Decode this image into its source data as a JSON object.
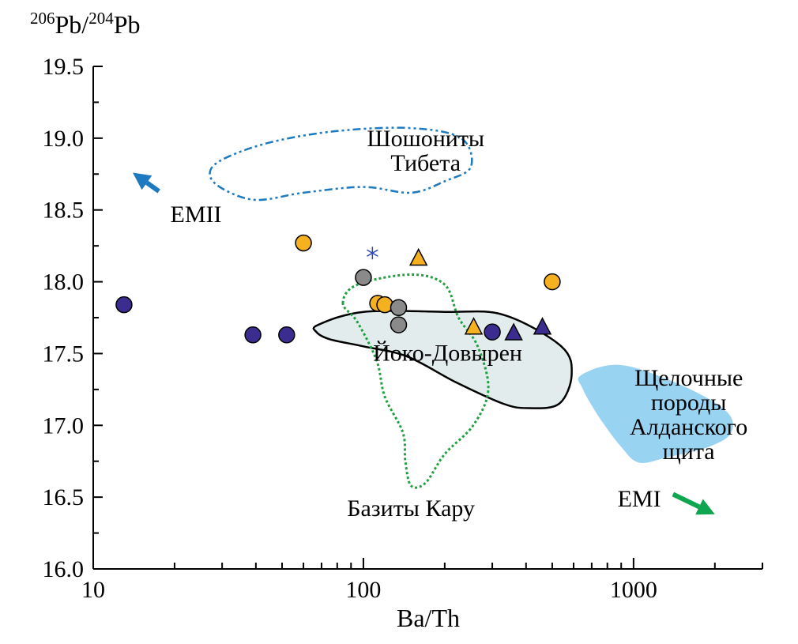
{
  "chart_data": {
    "type": "scatter",
    "title": "",
    "xlabel": "Ba/Th",
    "ylabel_parts": {
      "sup1": "206",
      "t1": "Pb/",
      "sup2": "204",
      "t2": "Pb"
    },
    "x_scale": "log",
    "xlim": [
      10,
      3000
    ],
    "ylim": [
      16.0,
      19.5
    ],
    "x_ticks_major": [
      10,
      100,
      1000
    ],
    "x_tick_labels": [
      "10",
      "100",
      "1000"
    ],
    "y_ticks": [
      16.0,
      16.5,
      17.0,
      17.5,
      18.0,
      18.5,
      19.0,
      19.5
    ],
    "y_tick_labels": [
      "16.0",
      "16.5",
      "17.0",
      "17.5",
      "18.0",
      "18.5",
      "19.0",
      "19.5"
    ],
    "grid": false,
    "colors": {
      "navy": "#3b2d8f",
      "orange": "#f5b120",
      "gray": "#8a8a8a",
      "star": "#2a4ab8",
      "kaapvaal_line": "#1ea040",
      "tibet_line": "#1c7ac0",
      "aldan_fill": "#99d3f2",
      "yoko_fill": "#e3ecec",
      "emii_arrow": "#1c7ac0",
      "emi_arrow": "#0ea651"
    },
    "series": [
      {
        "marker": "circle",
        "color": "navy",
        "points": [
          [
            13,
            17.84
          ],
          [
            39,
            17.63
          ],
          [
            52,
            17.63
          ],
          [
            300,
            17.65
          ]
        ]
      },
      {
        "marker": "circle",
        "color": "orange",
        "points": [
          [
            60,
            18.27
          ],
          [
            113,
            17.85
          ],
          [
            120,
            17.84
          ],
          [
            500,
            18.0
          ]
        ]
      },
      {
        "marker": "circle",
        "color": "gray",
        "points": [
          [
            100,
            18.03
          ],
          [
            135,
            17.82
          ],
          [
            135,
            17.7
          ]
        ]
      },
      {
        "marker": "triangle",
        "color": "orange",
        "points": [
          [
            160,
            18.16
          ],
          [
            256,
            17.68
          ]
        ]
      },
      {
        "marker": "triangle",
        "color": "navy",
        "points": [
          [
            360,
            17.64
          ],
          [
            460,
            17.68
          ]
        ]
      },
      {
        "marker": "star",
        "color": "star",
        "points": [
          [
            108,
            18.2
          ]
        ]
      }
    ],
    "regions": [
      {
        "name": "Шошониты Тибета",
        "label_lines": [
          "Шошониты",
          "Тибета"
        ],
        "label_at": [
          170,
          18.86
        ],
        "style": "dashdot",
        "color": "tibet_line",
        "fill": "none",
        "polygon": [
          [
            27,
            18.75
          ],
          [
            30,
            18.85
          ],
          [
            45,
            18.97
          ],
          [
            80,
            19.05
          ],
          [
            150,
            19.07
          ],
          [
            230,
            19.0
          ],
          [
            250,
            18.8
          ],
          [
            200,
            18.7
          ],
          [
            150,
            18.62
          ],
          [
            100,
            18.66
          ],
          [
            60,
            18.62
          ],
          [
            40,
            18.57
          ],
          [
            30,
            18.65
          ]
        ]
      },
      {
        "name": "Йоко-Довырен",
        "label_lines": [
          "Йоко-Довырен"
        ],
        "label_at": [
          205,
          17.45
        ],
        "style": "solid",
        "color": "#000000",
        "fill": "yoko_fill",
        "polygon": [
          [
            68,
            17.7
          ],
          [
            100,
            17.79
          ],
          [
            200,
            17.79
          ],
          [
            330,
            17.77
          ],
          [
            540,
            17.55
          ],
          [
            590,
            17.35
          ],
          [
            530,
            17.15
          ],
          [
            410,
            17.12
          ],
          [
            330,
            17.15
          ],
          [
            220,
            17.3
          ],
          [
            145,
            17.48
          ],
          [
            100,
            17.55
          ],
          [
            75,
            17.6
          ],
          [
            67,
            17.65
          ]
        ]
      },
      {
        "name": "Щелочные породы Алданского щита",
        "label_lines": [
          "Щелочные",
          "породы",
          "Алданского",
          "щита"
        ],
        "label_at": [
          1600,
          17.02
        ],
        "style": "none",
        "color": "aldan_fill",
        "fill": "aldan_fill",
        "polygon": [
          [
            640,
            17.35
          ],
          [
            900,
            17.42
          ],
          [
            1500,
            17.28
          ],
          [
            2200,
            17.1
          ],
          [
            2300,
            16.95
          ],
          [
            1900,
            16.85
          ],
          [
            1350,
            16.78
          ],
          [
            1050,
            16.74
          ],
          [
            900,
            16.85
          ],
          [
            750,
            17.05
          ],
          [
            650,
            17.25
          ]
        ]
      },
      {
        "name": "Базиты Кару",
        "label_lines": [
          "Базиты Кару"
        ],
        "label_at": [
          150,
          16.37
        ],
        "style": "dotted",
        "color": "kaapvaal_line",
        "fill": "none",
        "polygon": [
          [
            84,
            17.85
          ],
          [
            95,
            17.98
          ],
          [
            150,
            18.05
          ],
          [
            200,
            17.98
          ],
          [
            225,
            17.75
          ],
          [
            265,
            17.55
          ],
          [
            290,
            17.25
          ],
          [
            255,
            17.0
          ],
          [
            200,
            16.8
          ],
          [
            170,
            16.6
          ],
          [
            150,
            16.58
          ],
          [
            143,
            16.75
          ],
          [
            140,
            16.95
          ],
          [
            120,
            17.2
          ],
          [
            112,
            17.45
          ],
          [
            95,
            17.72
          ]
        ]
      }
    ],
    "arrows": [
      {
        "label": "EMII",
        "color": "emii_arrow",
        "from": [
          17.5,
          18.63
        ],
        "to": [
          14,
          18.76
        ],
        "label_at": [
          24,
          18.47
        ]
      },
      {
        "label": "EMI",
        "color": "emi_arrow",
        "from": [
          1400,
          16.52
        ],
        "to": [
          2000,
          16.38
        ],
        "label_at": [
          1050,
          16.49
        ]
      }
    ]
  }
}
